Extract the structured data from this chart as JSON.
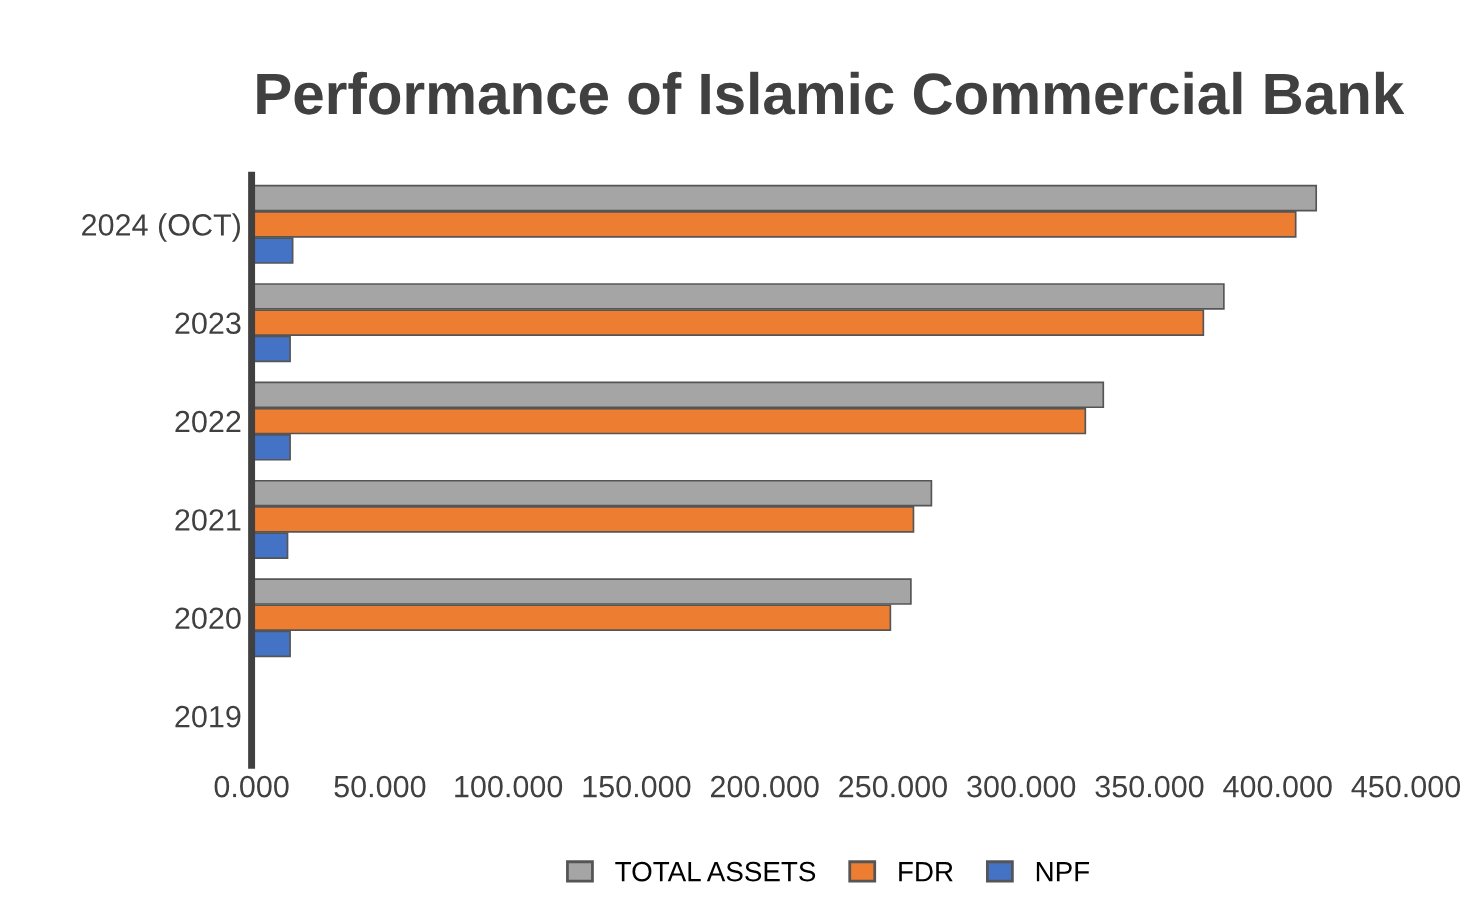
{
  "chart_data": {
    "type": "bar",
    "orientation": "horizontal",
    "title": "Performance of Islamic Commercial Bank",
    "categories": [
      "2024 (OCT)",
      "2023",
      "2022",
      "2021",
      "2020",
      "2019"
    ],
    "series": [
      {
        "name": "TOTAL ASSETS",
        "color": "#a5a5a5",
        "values": [
          415,
          379,
          332,
          265,
          257,
          null
        ]
      },
      {
        "name": "FDR",
        "color": "#ed7d31",
        "values": [
          407,
          371,
          325,
          258,
          249,
          null
        ]
      },
      {
        "name": "NPF",
        "color": "#4472c4",
        "values": [
          16,
          15,
          15,
          14,
          15,
          null
        ]
      }
    ],
    "xlim": [
      0,
      450
    ],
    "xticks": [
      {
        "value": 0,
        "label": "0.000"
      },
      {
        "value": 50,
        "label": "50.000"
      },
      {
        "value": 100,
        "label": "100.000"
      },
      {
        "value": 150,
        "label": "150.000"
      },
      {
        "value": 200,
        "label": "200.000"
      },
      {
        "value": 250,
        "label": "250.000"
      },
      {
        "value": 300,
        "label": "300.000"
      },
      {
        "value": 350,
        "label": "350.000"
      },
      {
        "value": 400,
        "label": "400.000"
      },
      {
        "value": 450,
        "label": "450.000"
      }
    ],
    "legend": "bottom",
    "grid": false
  }
}
